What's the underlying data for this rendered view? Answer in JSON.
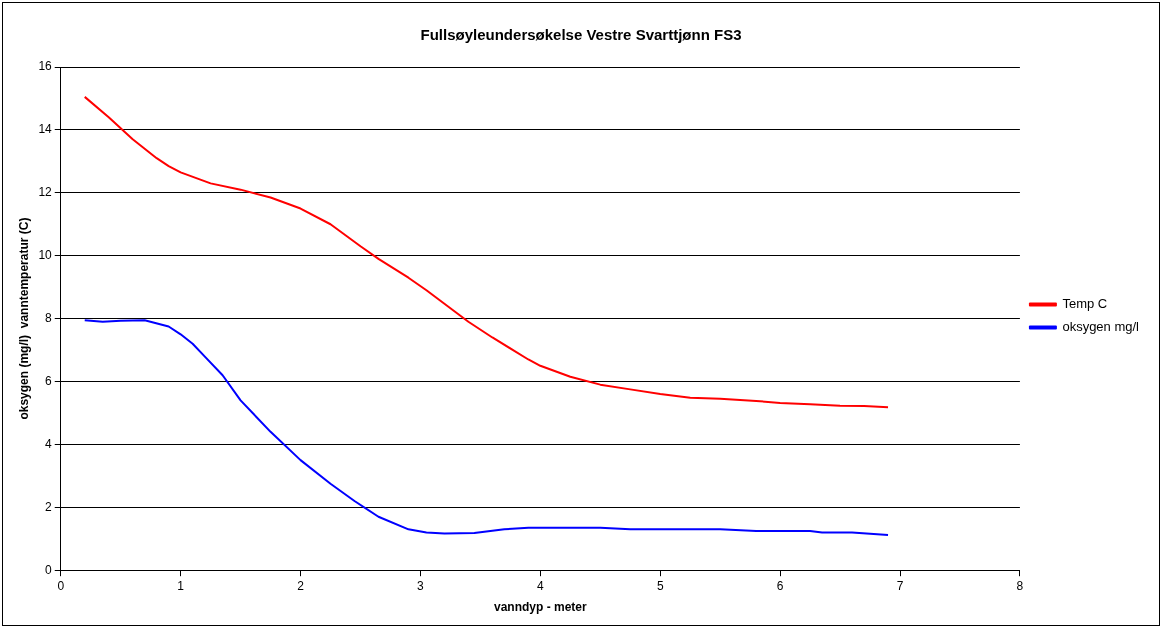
{
  "chart_data": {
    "type": "line",
    "title": "Fullsøyleundersøkelse Vestre Svarttjønn FS3",
    "xlabel": "vanndyp - meter",
    "ylabel": "oksygen (mg/l)  vanntemperatur (C)",
    "xlim": [
      0,
      8
    ],
    "xticks": [
      0,
      1,
      2,
      3,
      4,
      5,
      6,
      7,
      8
    ],
    "ylim": [
      0,
      16
    ],
    "yticks": [
      0,
      2,
      4,
      6,
      8,
      10,
      12,
      14,
      16
    ],
    "grid": "y",
    "legend": "right",
    "marker": "none",
    "line_style": "solid",
    "series": [
      {
        "name": "Temp C",
        "color": "#ff0000",
        "x": [
          0.2,
          0.4,
          0.6,
          0.8,
          0.9,
          1.0,
          1.25,
          1.5,
          1.75,
          2.0,
          2.25,
          2.5,
          2.65,
          2.9,
          3.05,
          3.4,
          3.6,
          3.9,
          4.0,
          4.25,
          4.5,
          4.75,
          5.0,
          5.25,
          5.5,
          5.8,
          6.0,
          6.25,
          6.5,
          6.7,
          6.9
        ],
        "values": [
          15.05,
          14.4,
          13.7,
          13.1,
          12.85,
          12.65,
          12.3,
          12.1,
          11.85,
          11.5,
          11.0,
          10.3,
          9.9,
          9.3,
          8.9,
          7.9,
          7.4,
          6.7,
          6.5,
          6.15,
          5.9,
          5.75,
          5.6,
          5.48,
          5.45,
          5.38,
          5.32,
          5.28,
          5.23,
          5.22,
          5.18
        ]
      },
      {
        "name": "oksygen mg/l",
        "color": "#0000ff",
        "x": [
          0.2,
          0.35,
          0.5,
          0.7,
          0.9,
          1.0,
          1.1,
          1.2,
          1.35,
          1.5,
          1.75,
          2.0,
          2.25,
          2.45,
          2.65,
          2.9,
          3.05,
          3.2,
          3.45,
          3.7,
          3.9,
          4.25,
          4.5,
          4.75,
          5.0,
          5.5,
          5.8,
          6.0,
          6.25,
          6.35,
          6.6,
          6.9
        ],
        "values": [
          7.95,
          7.9,
          7.93,
          7.95,
          7.75,
          7.5,
          7.2,
          6.8,
          6.2,
          5.4,
          4.4,
          3.5,
          2.75,
          2.2,
          1.7,
          1.3,
          1.2,
          1.17,
          1.18,
          1.3,
          1.35,
          1.35,
          1.35,
          1.3,
          1.3,
          1.3,
          1.25,
          1.25,
          1.25,
          1.2,
          1.2,
          1.12
        ]
      }
    ]
  }
}
